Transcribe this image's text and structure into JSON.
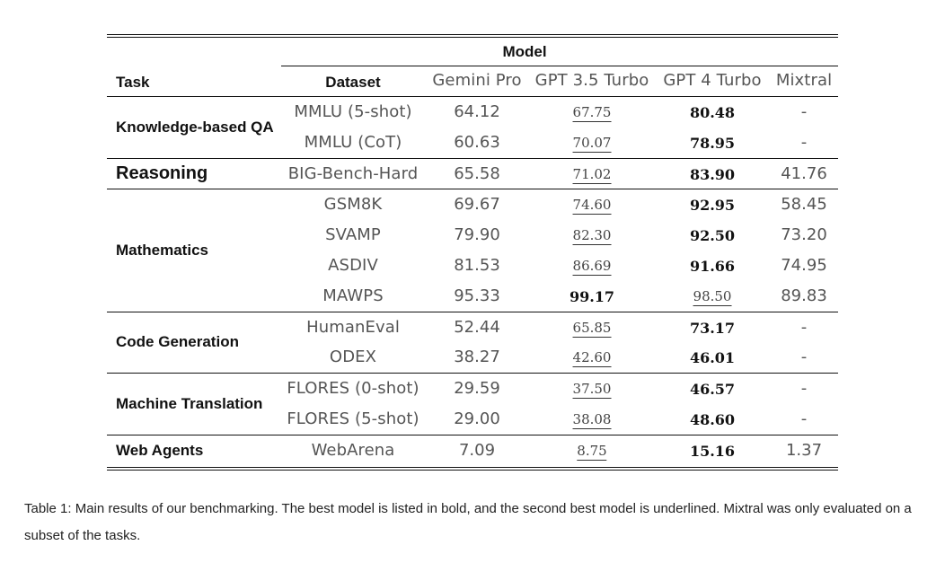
{
  "table": {
    "header_model": "Model",
    "header_task": "Task",
    "header_dataset": "Dataset",
    "models": [
      "Gemini Pro",
      "GPT 3.5 Turbo",
      "GPT 4 Turbo",
      "Mixtral"
    ],
    "groups": [
      {
        "task": "Knowledge-based QA",
        "rows": [
          {
            "dataset": "MMLU (5-shot)",
            "values": [
              "64.12",
              "67.75",
              "80.48",
              "-"
            ],
            "bold": 2,
            "underline": 1
          },
          {
            "dataset": "MMLU (CoT)",
            "values": [
              "60.63",
              "70.07",
              "78.95",
              "-"
            ],
            "bold": 2,
            "underline": 1
          }
        ]
      },
      {
        "task": "Reasoning",
        "rows": [
          {
            "dataset": "BIG-Bench-Hard",
            "values": [
              "65.58",
              "71.02",
              "83.90",
              "41.76"
            ],
            "bold": 2,
            "underline": 1
          }
        ]
      },
      {
        "task": "Mathematics",
        "rows": [
          {
            "dataset": "GSM8K",
            "values": [
              "69.67",
              "74.60",
              "92.95",
              "58.45"
            ],
            "bold": 2,
            "underline": 1
          },
          {
            "dataset": "SVAMP",
            "values": [
              "79.90",
              "82.30",
              "92.50",
              "73.20"
            ],
            "bold": 2,
            "underline": 1
          },
          {
            "dataset": "ASDIV",
            "values": [
              "81.53",
              "86.69",
              "91.66",
              "74.95"
            ],
            "bold": 2,
            "underline": 1
          },
          {
            "dataset": "MAWPS",
            "values": [
              "95.33",
              "99.17",
              "98.50",
              "89.83"
            ],
            "bold": 1,
            "underline": 2
          }
        ]
      },
      {
        "task": "Code Generation",
        "rows": [
          {
            "dataset": "HumanEval",
            "values": [
              "52.44",
              "65.85",
              "73.17",
              "-"
            ],
            "bold": 2,
            "underline": 1
          },
          {
            "dataset": "ODEX",
            "values": [
              "38.27",
              "42.60",
              "46.01",
              "-"
            ],
            "bold": 2,
            "underline": 1
          }
        ]
      },
      {
        "task": "Machine Translation",
        "rows": [
          {
            "dataset": "FLORES (0-shot)",
            "values": [
              "29.59",
              "37.50",
              "46.57",
              "-"
            ],
            "bold": 2,
            "underline": 1
          },
          {
            "dataset": "FLORES (5-shot)",
            "values": [
              "29.00",
              "38.08",
              "48.60",
              "-"
            ],
            "bold": 2,
            "underline": 1
          }
        ]
      },
      {
        "task": "Web Agents",
        "rows": [
          {
            "dataset": "WebArena",
            "values": [
              "7.09",
              "8.75",
              "15.16",
              "1.37"
            ],
            "bold": 2,
            "underline": 1
          }
        ]
      }
    ]
  },
  "caption": "Table 1: Main results of our benchmarking. The best model is listed in bold, and the second best model is underlined. Mixtral was only evaluated on a subset of the tasks."
}
